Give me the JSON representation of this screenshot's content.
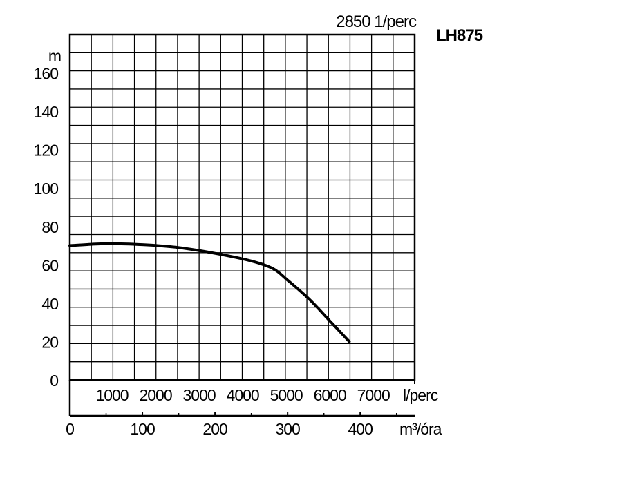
{
  "chart_data": {
    "type": "line",
    "title": "LH875",
    "speed_label": "2850 1/perc",
    "ylabel": "m",
    "ylim": [
      0,
      180
    ],
    "y_ticks": [
      "0",
      "20",
      "40",
      "60",
      "80",
      "100",
      "120",
      "140",
      "160"
    ],
    "x_primary": {
      "unit": "m³/óra",
      "ticks": [
        "0",
        "100",
        "200",
        "300",
        "400"
      ],
      "range": [
        0,
        475
      ]
    },
    "x_secondary": {
      "unit": "l/perc",
      "ticks": [
        "1000",
        "2000",
        "3000",
        "4000",
        "5000",
        "6000",
        "7000"
      ]
    },
    "grid": true,
    "series": [
      {
        "x": [
          0,
          50,
          100,
          150,
          200,
          250,
          280,
          300,
          330,
          360,
          385
        ],
        "y": [
          70,
          71,
          70.5,
          69,
          66,
          62,
          58,
          52,
          42,
          30,
          20
        ]
      }
    ]
  }
}
